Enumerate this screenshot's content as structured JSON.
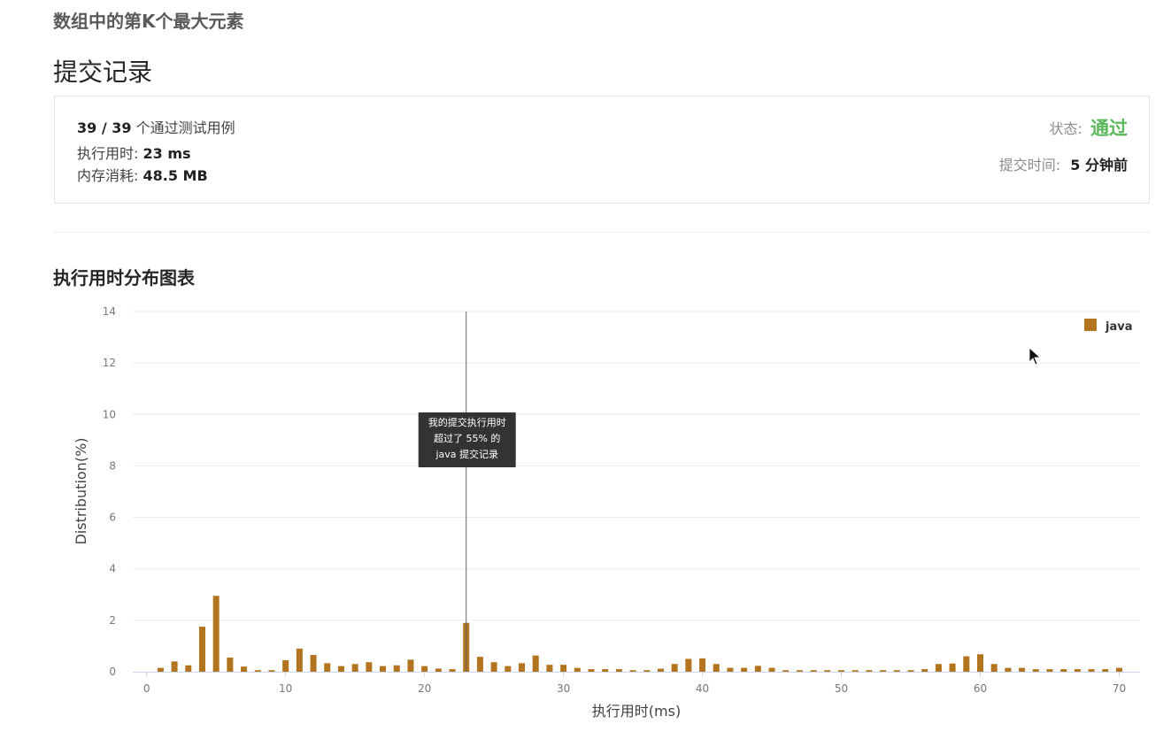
{
  "problem": {
    "title": "数组中的第K个最大元素"
  },
  "page": {
    "title": "提交记录"
  },
  "result": {
    "passed_count": "39 / 39",
    "passed_suffix": "个通过测试用例",
    "runtime_label": "执行用时:",
    "runtime_value": "23 ms",
    "memory_label": "内存消耗:",
    "memory_value": "48.5 MB",
    "status_label": "状态:",
    "status_value": "通过",
    "submit_time_label": "提交时间:",
    "submit_time_value": "5 分钟前"
  },
  "colors": {
    "bar": "#b3741f",
    "status_ok": "#5cb85c",
    "tooltip_bg": "#333333"
  },
  "section": {
    "title": "执行用时分布图表"
  },
  "chart_data": {
    "type": "bar",
    "xlabel": "执行用时(ms)",
    "ylabel": "Distribution(%)",
    "xlim": [
      -1,
      71.5
    ],
    "ylim": [
      0,
      14
    ],
    "x_ticks": [
      0,
      10,
      20,
      30,
      40,
      50,
      60,
      70
    ],
    "y_ticks": [
      0,
      2,
      4,
      6,
      8,
      10,
      12,
      14
    ],
    "grid": true,
    "legend_position": "top-right",
    "series": [
      {
        "name": "java",
        "x": [
          1,
          2,
          3,
          4,
          5,
          6,
          7,
          8,
          9,
          10,
          11,
          12,
          13,
          14,
          15,
          16,
          17,
          18,
          19,
          20,
          21,
          22,
          23,
          24,
          25,
          26,
          27,
          28,
          29,
          30,
          31,
          32,
          33,
          34,
          35,
          36,
          37,
          38,
          39,
          40,
          41,
          42,
          43,
          44,
          45,
          46,
          47,
          48,
          49,
          50,
          51,
          52,
          53,
          54,
          55,
          56,
          57,
          58,
          59,
          60,
          61,
          62,
          63,
          64,
          65,
          66,
          67,
          68,
          69,
          70
        ],
        "values": [
          0.15,
          0.4,
          0.25,
          1.75,
          2.95,
          0.55,
          0.2,
          0.06,
          0.06,
          0.45,
          0.9,
          0.65,
          0.33,
          0.22,
          0.3,
          0.37,
          0.22,
          0.25,
          0.47,
          0.22,
          0.12,
          0.1,
          1.9,
          0.58,
          0.37,
          0.22,
          0.33,
          0.63,
          0.27,
          0.27,
          0.15,
          0.1,
          0.1,
          0.1,
          0.06,
          0.06,
          0.12,
          0.3,
          0.5,
          0.52,
          0.3,
          0.15,
          0.15,
          0.23,
          0.15,
          0.06,
          0.06,
          0.06,
          0.06,
          0.06,
          0.06,
          0.06,
          0.06,
          0.06,
          0.06,
          0.1,
          0.3,
          0.32,
          0.6,
          0.68,
          0.3,
          0.15,
          0.15,
          0.1,
          0.1,
          0.1,
          0.1,
          0.1,
          0.1,
          0.15
        ]
      }
    ],
    "marker": {
      "x": 23,
      "tooltip": [
        "我的提交执行用时",
        "超过了 55% 的",
        "java 提交记录"
      ]
    }
  }
}
